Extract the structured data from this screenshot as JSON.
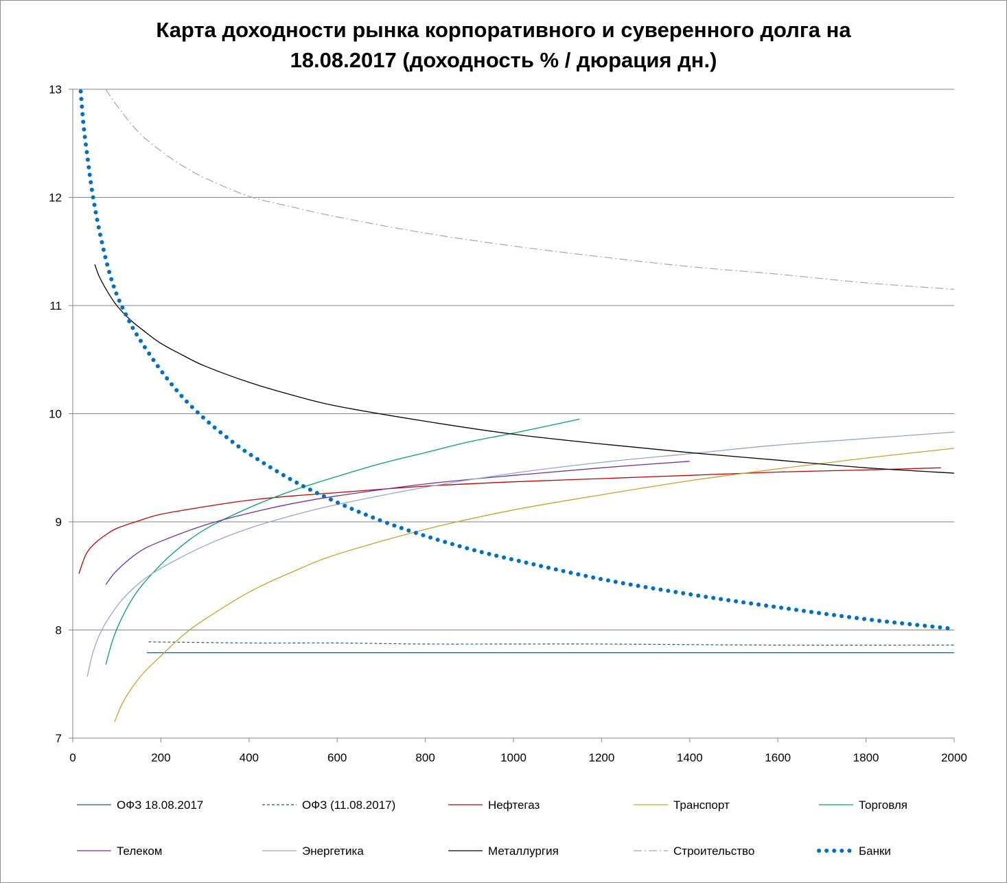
{
  "chart_data": {
    "type": "line",
    "title_line1": "Карта доходности рынка корпоративного и суверенного долга на",
    "title_line2": "18.08.2017 (доходность % / дюрация дн.)",
    "xlabel": "",
    "ylabel": "",
    "xlim": [
      0,
      2000
    ],
    "ylim": [
      7,
      13
    ],
    "x_ticks": [
      0,
      200,
      400,
      600,
      800,
      1000,
      1200,
      1400,
      1600,
      1800,
      2000
    ],
    "y_ticks": [
      7,
      8,
      9,
      10,
      11,
      12,
      13
    ],
    "grid": "horizontal",
    "legend_position": "bottom",
    "series": [
      {
        "name": "ОФЗ 18.08.2017",
        "color": "#1f5a7a",
        "style": "solid",
        "x": [
          168,
          400,
          800,
          1200,
          1600,
          2000
        ],
        "y": [
          7.79,
          7.79,
          7.79,
          7.79,
          7.79,
          7.79
        ]
      },
      {
        "name": "ОФЗ (11.08.2017)",
        "color": "#1f5a7a",
        "style": "dashed",
        "x": [
          172,
          400,
          600,
          800,
          1000,
          1200,
          1600,
          2000
        ],
        "y": [
          7.89,
          7.88,
          7.88,
          7.87,
          7.87,
          7.87,
          7.86,
          7.86
        ]
      },
      {
        "name": "Нефтегаз",
        "color": "#c00000",
        "style": "solid",
        "x": [
          14,
          30,
          50,
          75,
          100,
          150,
          200,
          300,
          400,
          500,
          600,
          800,
          1000,
          1200,
          1400,
          1600,
          1800,
          1970
        ],
        "y": [
          8.52,
          8.7,
          8.8,
          8.88,
          8.94,
          9.01,
          9.07,
          9.14,
          9.2,
          9.24,
          9.27,
          9.33,
          9.37,
          9.4,
          9.43,
          9.46,
          9.48,
          9.5
        ]
      },
      {
        "name": "Транспорт",
        "color": "#c9a227",
        "style": "solid",
        "x": [
          95,
          110,
          130,
          160,
          200,
          250,
          300,
          400,
          500,
          600,
          800,
          1000,
          1200,
          1400,
          1600,
          1800,
          2000
        ],
        "y": [
          7.15,
          7.3,
          7.44,
          7.6,
          7.76,
          7.95,
          8.1,
          8.35,
          8.54,
          8.7,
          8.93,
          9.11,
          9.25,
          9.38,
          9.49,
          9.59,
          9.68
        ]
      },
      {
        "name": "Торговля",
        "color": "#00a070",
        "style": "solid",
        "x": [
          75,
          90,
          110,
          140,
          180,
          230,
          300,
          400,
          500,
          600,
          700,
          800,
          900,
          1000,
          1150
        ],
        "y": [
          7.68,
          7.9,
          8.1,
          8.32,
          8.52,
          8.72,
          8.93,
          9.13,
          9.29,
          9.42,
          9.54,
          9.64,
          9.74,
          9.82,
          9.95
        ]
      },
      {
        "name": "Телеком",
        "color": "#7030a0",
        "style": "solid",
        "x": [
          75,
          100,
          150,
          200,
          300,
          400,
          500,
          600,
          800,
          1000,
          1200,
          1400
        ],
        "y": [
          8.42,
          8.55,
          8.72,
          8.82,
          8.97,
          9.08,
          9.17,
          9.24,
          9.35,
          9.43,
          9.5,
          9.56
        ]
      },
      {
        "name": "Энергетика",
        "color": "#8fa9c7",
        "style": "solid",
        "x": [
          33,
          45,
          60,
          80,
          110,
          150,
          200,
          300,
          400,
          500,
          600,
          800,
          1000,
          1200,
          1400,
          1600,
          1800,
          2000
        ],
        "y": [
          7.57,
          7.78,
          7.95,
          8.1,
          8.27,
          8.43,
          8.57,
          8.78,
          8.94,
          9.06,
          9.16,
          9.32,
          9.45,
          9.55,
          9.63,
          9.71,
          9.77,
          9.83
        ]
      },
      {
        "name": "Металлургия",
        "color": "#000000",
        "style": "solid",
        "x": [
          50,
          60,
          80,
          100,
          130,
          160,
          200,
          250,
          300,
          400,
          500,
          600,
          800,
          1000,
          1200,
          1400,
          1600,
          1800,
          2000
        ],
        "y": [
          11.38,
          11.27,
          11.12,
          11.0,
          10.87,
          10.77,
          10.65,
          10.54,
          10.44,
          10.29,
          10.17,
          10.07,
          9.93,
          9.81,
          9.72,
          9.64,
          9.57,
          9.5,
          9.45
        ]
      },
      {
        "name": "Строительство",
        "color": "#a6a6a6",
        "style": "dashdot",
        "x": [
          75,
          100,
          150,
          200,
          250,
          300,
          400,
          500,
          600,
          800,
          1000,
          1200,
          1400,
          1600,
          1800,
          2000
        ],
        "y": [
          13.0,
          12.85,
          12.6,
          12.43,
          12.29,
          12.18,
          12.01,
          11.91,
          11.82,
          11.67,
          11.55,
          11.45,
          11.36,
          11.29,
          11.21,
          11.15
        ]
      },
      {
        "name": "Банки",
        "color": "#0070c0",
        "style": "dotted",
        "x": [
          18,
          25,
          35,
          45,
          60,
          80,
          100,
          125,
          150,
          200,
          250,
          300,
          350,
          400,
          500,
          600,
          700,
          800,
          900,
          1000,
          1200,
          1400,
          1600,
          1800,
          2000
        ],
        "y": [
          12.98,
          12.65,
          12.32,
          12.03,
          11.7,
          11.35,
          11.1,
          10.88,
          10.7,
          10.4,
          10.15,
          9.95,
          9.78,
          9.63,
          9.38,
          9.18,
          9.01,
          8.87,
          8.75,
          8.65,
          8.47,
          8.33,
          8.21,
          8.1,
          8.01
        ]
      }
    ]
  }
}
